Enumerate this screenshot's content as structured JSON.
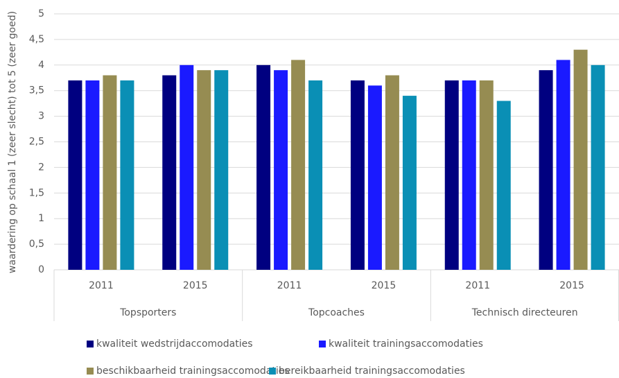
{
  "chart_data": {
    "type": "bar",
    "y_label": "waardering op schaal 1 (zeer slecht) tot 5 (zeer goed)",
    "categories": [
      "2011",
      "2015",
      "2011",
      "2015",
      "2011",
      "2015"
    ],
    "groups": [
      "Topsporters",
      "Topcoaches",
      "Technisch directeuren"
    ],
    "series": [
      {
        "name": "kwaliteit wedstrijdaccomodaties",
        "color": "#000080",
        "values": [
          3.7,
          3.8,
          4.0,
          3.7,
          3.7,
          3.9
        ]
      },
      {
        "name": "kwaliteit trainingsaccomodaties",
        "color": "#1a1aff",
        "values": [
          3.7,
          4.0,
          3.9,
          3.6,
          3.7,
          4.1
        ]
      },
      {
        "name": "beschikbaarheid trainingsaccomodaties",
        "color": "#968c52",
        "values": [
          3.8,
          3.9,
          4.1,
          3.8,
          3.7,
          4.3
        ]
      },
      {
        "name": "bereikbaarheid trainingsaccomodaties",
        "color": "#0a8fb5",
        "values": [
          3.7,
          3.9,
          3.7,
          3.4,
          3.3,
          4.0
        ]
      }
    ],
    "ylim": [
      0,
      5
    ],
    "yticks": [
      0,
      {
        "value": 0.5,
        "label": "0,5"
      },
      1,
      {
        "value": 1.5,
        "label": "1,5"
      },
      2,
      {
        "value": 2.5,
        "label": "2,5"
      },
      3,
      {
        "value": 3.5,
        "label": "3,5"
      },
      4,
      {
        "value": 4.5,
        "label": "4,5"
      },
      5
    ],
    "grid": true
  }
}
